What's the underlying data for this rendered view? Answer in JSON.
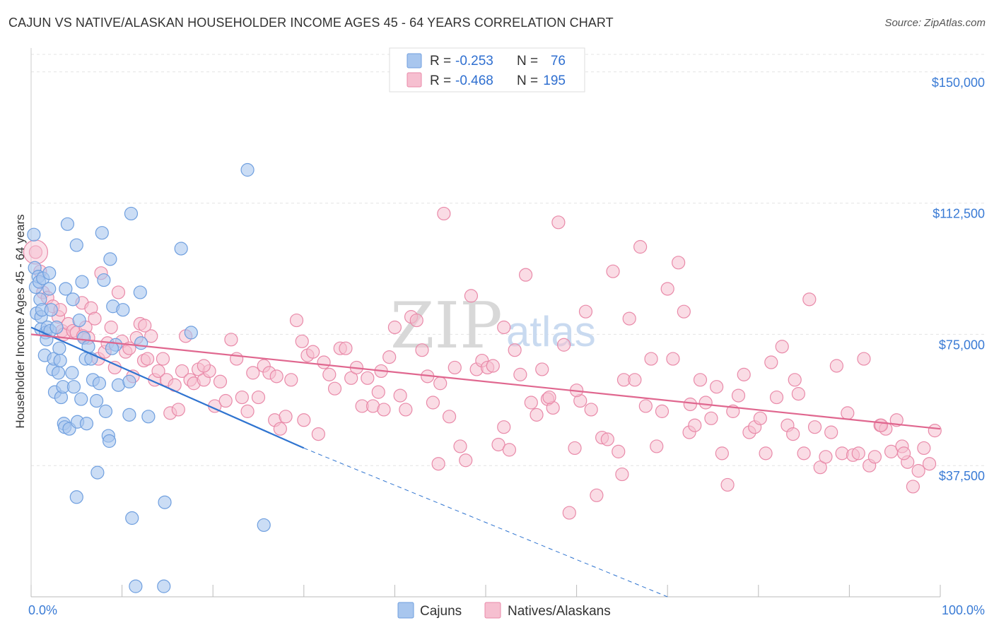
{
  "header": {
    "title": "CAJUN VS NATIVE/ALASKAN HOUSEHOLDER INCOME AGES 45 - 64 YEARS CORRELATION CHART",
    "source": "Source: ZipAtlas.com"
  },
  "watermark": {
    "zip": "ZIP",
    "atlas": "atlas"
  },
  "legend": {
    "r_label": "R =",
    "n_label": "N =",
    "rows": [
      {
        "r": "-0.253",
        "n": "76"
      },
      {
        "r": "-0.468",
        "n": "195"
      }
    ]
  },
  "colors": {
    "blue_fill": "#a8c6ee",
    "blue_stroke": "#6f9fdf",
    "blue_line": "#2f74d0",
    "pink_fill": "#f6bfd0",
    "pink_stroke": "#e98aa9",
    "pink_line": "#e0678f"
  },
  "chart_data": {
    "type": "scatter",
    "title": "CAJUN VS NATIVE/ALASKAN HOUSEHOLDER INCOME AGES 45 - 64 YEARS CORRELATION CHART",
    "xlabel": "",
    "ylabel": "Householder Income Ages 45 - 64 years",
    "xlim": [
      0,
      100
    ],
    "ylim": [
      0,
      155000
    ],
    "x_tick_labels": [
      "0.0%",
      "100.0%"
    ],
    "y_ticks": [
      37500,
      75000,
      112500,
      150000
    ],
    "y_tick_labels": [
      "$37,500",
      "$75,000",
      "$112,500",
      "$150,000"
    ],
    "grid": true,
    "series": [
      {
        "name": "Cajuns",
        "r": -0.253,
        "n": 76,
        "trend": {
          "x0": 0,
          "y0": 77000,
          "x1": 30,
          "y1": 42500,
          "dash_to_x": 70,
          "dash_to_y": -3500
        },
        "points": [
          [
            0.3,
            103500
          ],
          [
            0.4,
            94000
          ],
          [
            0.5,
            88500
          ],
          [
            0.6,
            81000
          ],
          [
            0.8,
            91500
          ],
          [
            0.9,
            90000
          ],
          [
            1.0,
            85000
          ],
          [
            1.1,
            76500
          ],
          [
            1.1,
            80000
          ],
          [
            1.2,
            82000
          ],
          [
            1.3,
            91000
          ],
          [
            1.5,
            69000
          ],
          [
            1.6,
            75500
          ],
          [
            1.7,
            73500
          ],
          [
            1.8,
            77000
          ],
          [
            2.0,
            88000
          ],
          [
            2.0,
            92500
          ],
          [
            2.1,
            76000
          ],
          [
            2.2,
            82000
          ],
          [
            2.4,
            65000
          ],
          [
            2.5,
            68000
          ],
          [
            2.6,
            58500
          ],
          [
            2.8,
            77000
          ],
          [
            3.0,
            64000
          ],
          [
            3.1,
            71000
          ],
          [
            3.2,
            67500
          ],
          [
            3.3,
            57000
          ],
          [
            3.5,
            60000
          ],
          [
            3.6,
            49500
          ],
          [
            3.7,
            48500
          ],
          [
            3.8,
            88000
          ],
          [
            4.0,
            106500
          ],
          [
            4.2,
            48000
          ],
          [
            4.5,
            64000
          ],
          [
            4.6,
            85000
          ],
          [
            4.7,
            60000
          ],
          [
            5.0,
            100500
          ],
          [
            5.1,
            50000
          ],
          [
            5.3,
            79000
          ],
          [
            5.5,
            56500
          ],
          [
            5.6,
            90000
          ],
          [
            5.8,
            74000
          ],
          [
            6.0,
            68000
          ],
          [
            6.1,
            49500
          ],
          [
            6.3,
            71500
          ],
          [
            6.6,
            68000
          ],
          [
            6.8,
            62000
          ],
          [
            7.2,
            56000
          ],
          [
            7.3,
            35500
          ],
          [
            7.5,
            61000
          ],
          [
            7.8,
            104000
          ],
          [
            8.0,
            90500
          ],
          [
            8.2,
            53000
          ],
          [
            8.5,
            46000
          ],
          [
            8.6,
            44500
          ],
          [
            8.7,
            96500
          ],
          [
            9.0,
            83000
          ],
          [
            9.3,
            72000
          ],
          [
            9.6,
            60500
          ],
          [
            10.1,
            82000
          ],
          [
            10.8,
            61500
          ],
          [
            10.8,
            52000
          ],
          [
            11.0,
            109500
          ],
          [
            11.1,
            22500
          ],
          [
            11.5,
            3000
          ],
          [
            12.0,
            87000
          ],
          [
            12.1,
            72500
          ],
          [
            12.9,
            51500
          ],
          [
            14.6,
            3000
          ],
          [
            14.7,
            27000
          ],
          [
            16.5,
            99500
          ],
          [
            17.6,
            75500
          ],
          [
            5.0,
            28500
          ],
          [
            23.8,
            122000
          ],
          [
            25.6,
            20500
          ],
          [
            8.9,
            71000
          ]
        ]
      },
      {
        "name": "Natives/Alaskans",
        "r": -0.468,
        "n": 195,
        "trend": {
          "x0": 0,
          "y0": 75000,
          "x1": 100,
          "y1": 48000
        },
        "points": [
          [
            0.5,
            98500
          ],
          [
            1.0,
            93000
          ],
          [
            1.3,
            87000
          ],
          [
            1.8,
            85500
          ],
          [
            2.4,
            83000
          ],
          [
            3.0,
            80000
          ],
          [
            3.4,
            76000
          ],
          [
            3.6,
            75000
          ],
          [
            4.1,
            78000
          ],
          [
            4.6,
            76000
          ],
          [
            5.0,
            75500
          ],
          [
            5.6,
            84000
          ],
          [
            6.0,
            77000
          ],
          [
            6.3,
            74000
          ],
          [
            6.6,
            82500
          ],
          [
            7.0,
            79500
          ],
          [
            7.4,
            68000
          ],
          [
            7.7,
            92500
          ],
          [
            8.1,
            70000
          ],
          [
            8.4,
            72500
          ],
          [
            8.8,
            77000
          ],
          [
            9.2,
            65500
          ],
          [
            9.6,
            87000
          ],
          [
            10.0,
            73000
          ],
          [
            10.4,
            70000
          ],
          [
            10.8,
            71000
          ],
          [
            11.2,
            63000
          ],
          [
            11.6,
            74000
          ],
          [
            12.0,
            78000
          ],
          [
            12.4,
            67500
          ],
          [
            12.8,
            68000
          ],
          [
            13.2,
            74500
          ],
          [
            13.6,
            62000
          ],
          [
            14.0,
            64500
          ],
          [
            14.5,
            68000
          ],
          [
            14.9,
            62000
          ],
          [
            15.3,
            52500
          ],
          [
            15.8,
            60500
          ],
          [
            16.2,
            53500
          ],
          [
            16.6,
            64500
          ],
          [
            17.0,
            74500
          ],
          [
            17.5,
            62000
          ],
          [
            17.9,
            61000
          ],
          [
            18.4,
            65000
          ],
          [
            19.0,
            62000
          ],
          [
            19.6,
            64500
          ],
          [
            20.2,
            54500
          ],
          [
            20.8,
            61500
          ],
          [
            21.4,
            56000
          ],
          [
            22.0,
            73500
          ],
          [
            22.6,
            68000
          ],
          [
            23.2,
            57000
          ],
          [
            23.8,
            53000
          ],
          [
            24.4,
            64000
          ],
          [
            25.0,
            57000
          ],
          [
            25.6,
            66000
          ],
          [
            26.2,
            64000
          ],
          [
            26.8,
            50500
          ],
          [
            27.4,
            48000
          ],
          [
            28.0,
            51500
          ],
          [
            28.6,
            62000
          ],
          [
            29.2,
            79000
          ],
          [
            29.8,
            73000
          ],
          [
            30.4,
            69000
          ],
          [
            31.0,
            70000
          ],
          [
            31.6,
            46500
          ],
          [
            32.2,
            67000
          ],
          [
            32.8,
            63500
          ],
          [
            33.4,
            59500
          ],
          [
            34.0,
            71000
          ],
          [
            34.6,
            71000
          ],
          [
            35.2,
            62500
          ],
          [
            35.8,
            65500
          ],
          [
            36.4,
            54500
          ],
          [
            37.0,
            62500
          ],
          [
            37.6,
            54500
          ],
          [
            38.2,
            58500
          ],
          [
            38.8,
            53500
          ],
          [
            39.4,
            68500
          ],
          [
            40.0,
            77000
          ],
          [
            40.6,
            57500
          ],
          [
            41.2,
            53500
          ],
          [
            41.8,
            80000
          ],
          [
            42.4,
            79000
          ],
          [
            43.0,
            70500
          ],
          [
            43.6,
            63000
          ],
          [
            44.2,
            55500
          ],
          [
            44.8,
            38000
          ],
          [
            45.4,
            109500
          ],
          [
            46.0,
            51500
          ],
          [
            46.6,
            65500
          ],
          [
            47.2,
            43000
          ],
          [
            47.8,
            39000
          ],
          [
            48.4,
            86000
          ],
          [
            49.0,
            65000
          ],
          [
            49.6,
            67500
          ],
          [
            50.2,
            65500
          ],
          [
            50.8,
            66000
          ],
          [
            51.4,
            43500
          ],
          [
            52.0,
            77000
          ],
          [
            52.6,
            42000
          ],
          [
            53.2,
            70500
          ],
          [
            53.8,
            63500
          ],
          [
            54.4,
            92000
          ],
          [
            55.0,
            55500
          ],
          [
            55.6,
            52000
          ],
          [
            56.2,
            65000
          ],
          [
            56.8,
            56500
          ],
          [
            57.4,
            54000
          ],
          [
            58.0,
            107000
          ],
          [
            58.6,
            72000
          ],
          [
            59.2,
            24000
          ],
          [
            59.8,
            42500
          ],
          [
            60.4,
            56000
          ],
          [
            61.0,
            81500
          ],
          [
            61.6,
            53500
          ],
          [
            62.2,
            29000
          ],
          [
            62.8,
            45500
          ],
          [
            63.4,
            45000
          ],
          [
            64.0,
            93000
          ],
          [
            64.6,
            41500
          ],
          [
            65.2,
            62000
          ],
          [
            65.8,
            79500
          ],
          [
            66.4,
            62000
          ],
          [
            67.0,
            100000
          ],
          [
            67.6,
            54500
          ],
          [
            68.2,
            68000
          ],
          [
            68.8,
            43000
          ],
          [
            69.4,
            53000
          ],
          [
            70.0,
            88000
          ],
          [
            70.6,
            68000
          ],
          [
            71.2,
            95500
          ],
          [
            71.8,
            81500
          ],
          [
            72.4,
            47000
          ],
          [
            73.0,
            49000
          ],
          [
            73.6,
            62000
          ],
          [
            74.2,
            55500
          ],
          [
            74.8,
            51000
          ],
          [
            75.4,
            60000
          ],
          [
            76.0,
            41000
          ],
          [
            76.6,
            32000
          ],
          [
            77.2,
            53000
          ],
          [
            77.8,
            57500
          ],
          [
            78.4,
            63500
          ],
          [
            79.0,
            47000
          ],
          [
            79.6,
            48500
          ],
          [
            80.2,
            51000
          ],
          [
            80.8,
            41000
          ],
          [
            81.4,
            67000
          ],
          [
            82.0,
            57000
          ],
          [
            82.6,
            71500
          ],
          [
            83.2,
            49000
          ],
          [
            83.8,
            46500
          ],
          [
            84.4,
            58000
          ],
          [
            85.0,
            41000
          ],
          [
            85.6,
            85000
          ],
          [
            86.2,
            48500
          ],
          [
            86.8,
            37000
          ],
          [
            87.4,
            40000
          ],
          [
            88.0,
            47000
          ],
          [
            88.6,
            66000
          ],
          [
            89.2,
            41000
          ],
          [
            89.8,
            52500
          ],
          [
            90.4,
            40500
          ],
          [
            91.0,
            41000
          ],
          [
            91.6,
            68000
          ],
          [
            92.2,
            37500
          ],
          [
            92.8,
            40000
          ],
          [
            93.4,
            49000
          ],
          [
            94.0,
            48000
          ],
          [
            94.6,
            41500
          ],
          [
            95.2,
            50500
          ],
          [
            95.8,
            43000
          ],
          [
            96.4,
            38500
          ],
          [
            97.0,
            31500
          ],
          [
            97.6,
            36000
          ],
          [
            98.2,
            42500
          ],
          [
            98.8,
            38000
          ],
          [
            99.4,
            47500
          ],
          [
            84.0,
            62000
          ],
          [
            65.0,
            35000
          ],
          [
            72.5,
            55000
          ],
          [
            60.0,
            59000
          ],
          [
            45.0,
            61000
          ],
          [
            38.5,
            64500
          ],
          [
            52.0,
            48500
          ],
          [
            30.0,
            50500
          ],
          [
            27.0,
            63000
          ],
          [
            19.0,
            66000
          ],
          [
            12.5,
            77500
          ],
          [
            3.2,
            82000
          ],
          [
            5.7,
            74500
          ],
          [
            93.5,
            49000
          ],
          [
            96.0,
            41000
          ],
          [
            57.0,
            57000
          ]
        ]
      }
    ]
  },
  "bottom_legend": [
    {
      "label": "Cajuns"
    },
    {
      "label": "Natives/Alaskans"
    }
  ]
}
